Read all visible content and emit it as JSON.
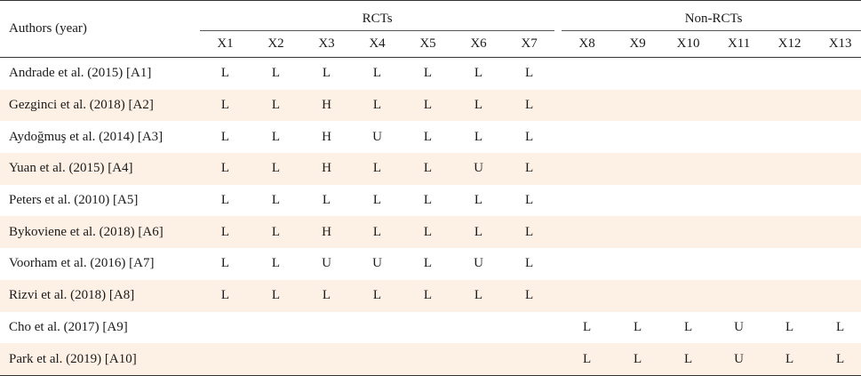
{
  "header": {
    "author_label": "Authors (year)",
    "group_rct": "RCTs",
    "group_nonrct": "Non-RCTs",
    "columns": [
      "X1",
      "X2",
      "X3",
      "X4",
      "X5",
      "X6",
      "X7",
      "X8",
      "X9",
      "X10",
      "X11",
      "X12",
      "X13"
    ]
  },
  "rows": [
    {
      "author": "Andrade et al. (2015) [A1]",
      "values": [
        "L",
        "L",
        "L",
        "L",
        "L",
        "L",
        "L",
        "",
        "",
        "",
        "",
        "",
        ""
      ]
    },
    {
      "author": "Gezginci et al. (2018) [A2]",
      "values": [
        "L",
        "L",
        "H",
        "L",
        "L",
        "L",
        "L",
        "",
        "",
        "",
        "",
        "",
        ""
      ]
    },
    {
      "author": "Aydoğmuş et al. (2014) [A3]",
      "values": [
        "L",
        "L",
        "H",
        "U",
        "L",
        "L",
        "L",
        "",
        "",
        "",
        "",
        "",
        ""
      ]
    },
    {
      "author": "Yuan et al. (2015) [A4]",
      "values": [
        "L",
        "L",
        "H",
        "L",
        "L",
        "U",
        "L",
        "",
        "",
        "",
        "",
        "",
        ""
      ]
    },
    {
      "author": "Peters et al. (2010) [A5]",
      "values": [
        "L",
        "L",
        "L",
        "L",
        "L",
        "L",
        "L",
        "",
        "",
        "",
        "",
        "",
        ""
      ]
    },
    {
      "author": "Bykoviene et al. (2018) [A6]",
      "values": [
        "L",
        "L",
        "H",
        "L",
        "L",
        "L",
        "L",
        "",
        "",
        "",
        "",
        "",
        ""
      ]
    },
    {
      "author": "Voorham et al. (2016) [A7]",
      "values": [
        "L",
        "L",
        "U",
        "U",
        "L",
        "U",
        "L",
        "",
        "",
        "",
        "",
        "",
        ""
      ]
    },
    {
      "author": "Rizvi et al. (2018) [A8]",
      "values": [
        "L",
        "L",
        "L",
        "L",
        "L",
        "L",
        "L",
        "",
        "",
        "",
        "",
        "",
        ""
      ]
    },
    {
      "author": "Cho et al. (2017) [A9]",
      "values": [
        "",
        "",
        "",
        "",
        "",
        "",
        "",
        "L",
        "L",
        "L",
        "U",
        "L",
        "L"
      ]
    },
    {
      "author": "Park et al. (2019) [A10]",
      "values": [
        "",
        "",
        "",
        "",
        "",
        "",
        "",
        "L",
        "L",
        "L",
        "U",
        "L",
        "L"
      ]
    }
  ]
}
